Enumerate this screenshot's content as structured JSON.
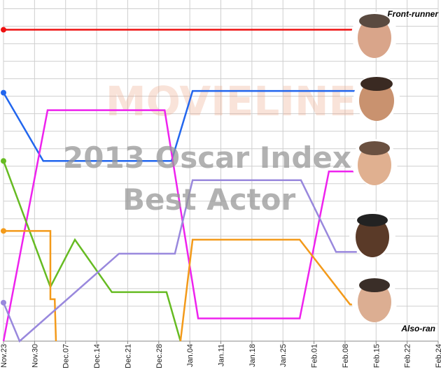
{
  "chart_data": {
    "type": "line",
    "title": "2013 Oscar Index",
    "subtitle": "Best Actor",
    "watermark": "MOVIELINE",
    "annotations": [
      "Front-runner",
      "Also-ran"
    ],
    "xlim": [
      0,
      14
    ],
    "xticks": [
      {
        "value": 0,
        "label": "Nov.23"
      },
      {
        "value": 1,
        "label": "Nov.30"
      },
      {
        "value": 2,
        "label": "Dec.07"
      },
      {
        "value": 3,
        "label": "Dec.14"
      },
      {
        "value": 4,
        "label": "Dec.21"
      },
      {
        "value": 5,
        "label": "Dec.28"
      },
      {
        "value": 6,
        "label": "Jan.04"
      },
      {
        "value": 7,
        "label": "Jan.11"
      },
      {
        "value": 8,
        "label": "Jan.18"
      },
      {
        "value": 9,
        "label": "Jan.25"
      },
      {
        "value": 10,
        "label": "Feb.01"
      },
      {
        "value": 11,
        "label": "Feb.08"
      },
      {
        "value": 12,
        "label": "Feb.15"
      },
      {
        "value": 13,
        "label": "Feb.22"
      },
      {
        "value": 14,
        "label": "Feb.24"
      }
    ],
    "ylim": [
      0,
      19.5
    ],
    "yticks": [
      0,
      1,
      2,
      3,
      4,
      5,
      6,
      7,
      8,
      9,
      10,
      11,
      12,
      13,
      14,
      15,
      16,
      17,
      18,
      19
    ],
    "grid": true,
    "series": [
      {
        "color": "#ee1111",
        "x": [
          0,
          11.4
        ],
        "values": [
          17.8,
          17.8
        ]
      },
      {
        "color": "#2266ee",
        "x": [
          0,
          1.28,
          5.41,
          6.09,
          11.38
        ],
        "values": [
          14.2,
          10.3,
          10.3,
          14.3,
          14.3
        ]
      },
      {
        "color": "#ee22ee",
        "x": [
          0,
          1.42,
          5.19,
          6.27,
          9.54,
          10.48,
          11.38
        ],
        "values": [
          0,
          13.2,
          13.2,
          1.3,
          1.3,
          9.7,
          9.7
        ]
      },
      {
        "color": "#66bb22",
        "x": [
          0,
          1.51,
          2.3,
          3.49,
          5.25,
          5.7
        ],
        "values": [
          10.3,
          3.1,
          5.8,
          2.8,
          2.8,
          0
        ]
      },
      {
        "color": "#f39a1a",
        "x": [
          0,
          1.51,
          1.51,
          1.65,
          1.69,
          null,
          5.7,
          6.09,
          9.54,
          11.16,
          11.38
        ],
        "values": [
          6.3,
          6.3,
          2.4,
          2.4,
          0,
          null,
          0,
          5.8,
          5.8,
          2.1,
          2.1
        ]
      },
      {
        "color": "#9988dd",
        "x": [
          0,
          0.52,
          3.72,
          5.52,
          6.09,
          9.58,
          10.71,
          11.38
        ],
        "values": [
          2.2,
          0,
          5,
          5,
          9.2,
          9.2,
          5.1,
          5.1
        ]
      }
    ]
  }
}
